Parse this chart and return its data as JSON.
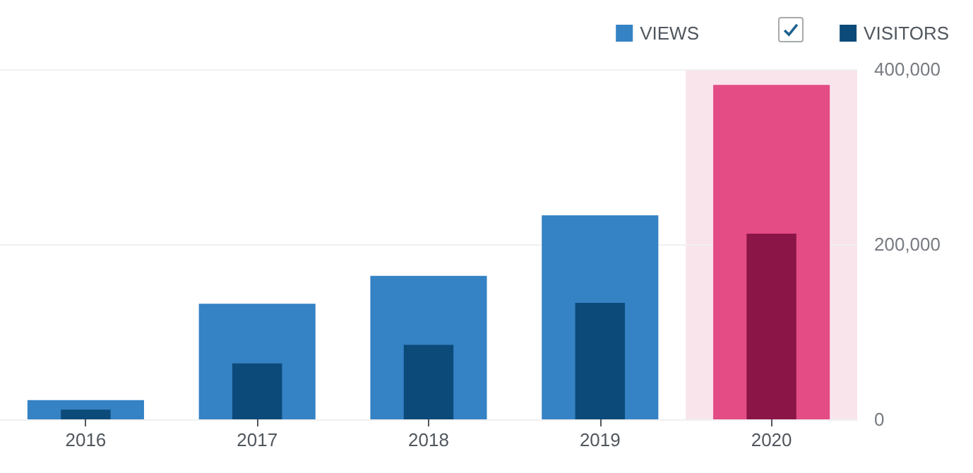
{
  "chart_data": {
    "type": "bar",
    "categories": [
      "2016",
      "2017",
      "2018",
      "2019",
      "2020"
    ],
    "series": [
      {
        "name": "VIEWS",
        "color": "#3582c4",
        "colors": [
          "#3582c4",
          "#3582c4",
          "#3582c4",
          "#3582c4",
          "#e34c84"
        ],
        "values": [
          22000,
          132000,
          164000,
          233000,
          382000
        ]
      },
      {
        "name": "VISITORS",
        "color": "#0c4a7a",
        "colors": [
          "#0c4a7a",
          "#0c4a7a",
          "#0c4a7a",
          "#0c4a7a",
          "#8b1546"
        ],
        "values": [
          11000,
          64000,
          85000,
          133000,
          212000
        ]
      }
    ],
    "ylim": [
      0,
      400000
    ],
    "yticks": [
      {
        "value": 0,
        "label": "0"
      },
      {
        "value": 200000,
        "label": "200,000"
      },
      {
        "value": 400000,
        "label": "400,000"
      }
    ],
    "bands": [
      {
        "axis": "x",
        "from": "2020",
        "to": "2020",
        "color": "#f9e4ec"
      }
    ],
    "grid": "y",
    "legend": "top right"
  }
}
